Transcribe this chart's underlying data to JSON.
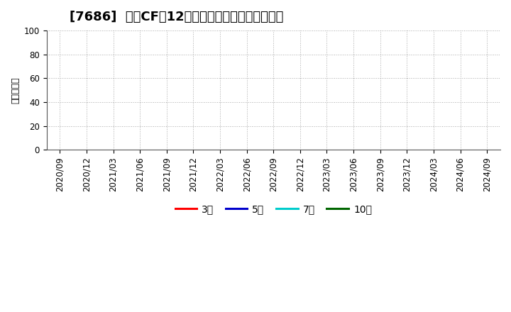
{
  "title": "[7686]  投資CFの12か月移動合計の平均値の推移",
  "ylabel": "（百万円）",
  "ylim": [
    0,
    100
  ],
  "yticks": [
    0,
    20,
    40,
    60,
    80,
    100
  ],
  "xtick_labels": [
    "2020/09",
    "2020/12",
    "2021/03",
    "2021/06",
    "2021/09",
    "2021/12",
    "2022/03",
    "2022/06",
    "2022/09",
    "2022/12",
    "2023/03",
    "2023/06",
    "2023/09",
    "2023/12",
    "2024/03",
    "2024/06",
    "2024/09"
  ],
  "legend_entries": [
    {
      "label": "3年",
      "color": "#ff0000"
    },
    {
      "label": "5年",
      "color": "#0000cc"
    },
    {
      "label": "7年",
      "color": "#00cccc"
    },
    {
      "label": "10年",
      "color": "#006600"
    }
  ],
  "background_color": "#ffffff",
  "plot_bg_color": "#ffffff",
  "grid_color": "#aaaaaa",
  "title_fontsize": 13,
  "axis_label_fontsize": 9,
  "tick_fontsize": 8.5,
  "legend_fontsize": 10
}
